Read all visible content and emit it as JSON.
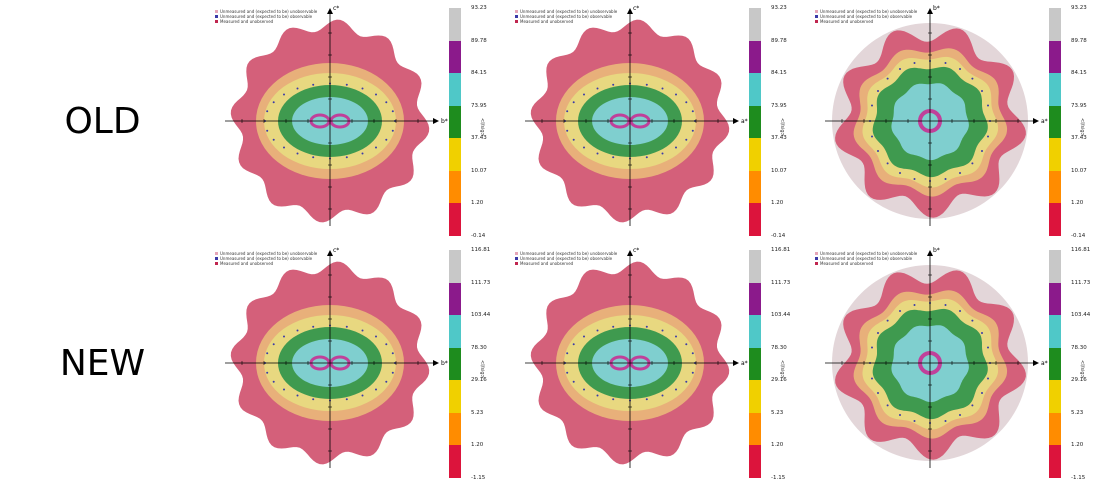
{
  "row_labels": {
    "old": "OLD",
    "new": "NEW"
  },
  "legend_entries": [
    "Unmeasured and (expected to be) unobservable",
    "Unmeasured and (expected to be) observable",
    "Measured and unobserved"
  ],
  "legend_colors": [
    "#e6a6b8",
    "#3b3ba8",
    "#c0264f"
  ],
  "colorbar_label": "<I/sig>",
  "colorbar_colors": [
    "#c8c8c8",
    "#8b1a8b",
    "#4fc8c8",
    "#1e8c1e",
    "#f0d000",
    "#ff8c00",
    "#dc143c"
  ],
  "rows": [
    {
      "name": "old",
      "ticks": [
        "93.23",
        "89.78",
        "84.15",
        "73.95",
        "37.43",
        "10.07",
        "1.20",
        "-0.14"
      ],
      "panels": [
        {
          "v_axis": "c*",
          "h_axis": "b*",
          "style": "ellipse"
        },
        {
          "v_axis": "c*",
          "h_axis": "a*",
          "style": "ellipse"
        },
        {
          "v_axis": "b*",
          "h_axis": "a*",
          "style": "round"
        }
      ]
    },
    {
      "name": "new",
      "ticks": [
        "116.81",
        "111.73",
        "103.44",
        "78.30",
        "29.16",
        "5.23",
        "1.20",
        "-1.15"
      ],
      "panels": [
        {
          "v_axis": "c*",
          "h_axis": "b*",
          "style": "ellipse"
        },
        {
          "v_axis": "c*",
          "h_axis": "a*",
          "style": "ellipse"
        },
        {
          "v_axis": "b*",
          "h_axis": "a*",
          "style": "round"
        }
      ]
    }
  ]
}
